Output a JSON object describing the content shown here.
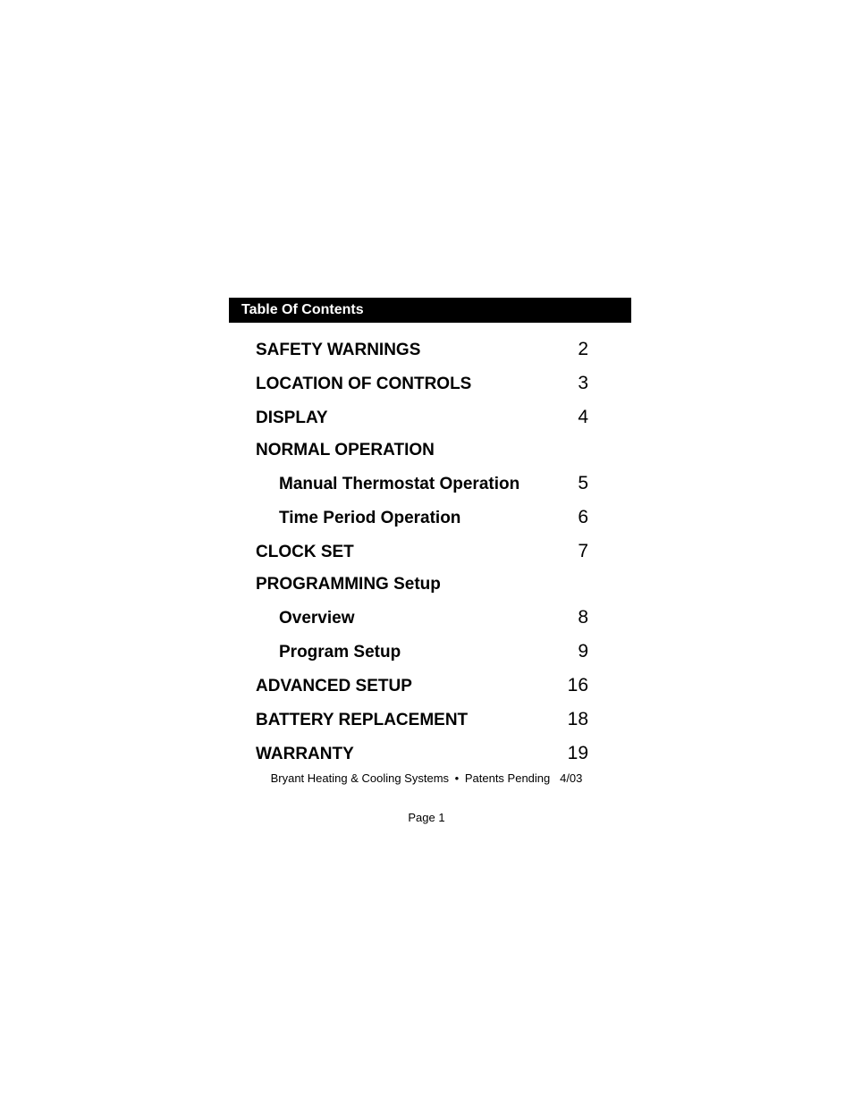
{
  "header": "Table Of Contents",
  "entries": [
    {
      "title": "SAFETY WARNINGS",
      "page": "2",
      "indent": false
    },
    {
      "title": "LOCATION OF CONTROLS",
      "page": "3",
      "indent": false
    },
    {
      "title": "DISPLAY",
      "page": "4",
      "indent": false
    },
    {
      "title": "NORMAL OPERATION",
      "page": "",
      "indent": false
    },
    {
      "title": "Manual Thermostat Operation",
      "page": "5",
      "indent": true
    },
    {
      "title": "Time Period Operation",
      "page": "6",
      "indent": true
    },
    {
      "title": "CLOCK SET",
      "page": "7",
      "indent": false
    },
    {
      "title": "PROGRAMMING Setup",
      "page": "",
      "indent": false
    },
    {
      "title": "Overview",
      "page": "8",
      "indent": true
    },
    {
      "title": "Program Setup",
      "page": "9",
      "indent": true
    },
    {
      "title": "ADVANCED SETUP",
      "page": "16",
      "indent": false
    },
    {
      "title": "BATTERY REPLACEMENT",
      "page": "18",
      "indent": false
    },
    {
      "title": "WARRANTY",
      "page": "19",
      "indent": false
    }
  ],
  "footer": {
    "company": "Bryant Heating & Cooling Systems",
    "patent": "Patents Pending",
    "date": "4/03"
  },
  "page_label": "Page 1",
  "colors": {
    "header_bg": "#000000",
    "header_text": "#ffffff",
    "body_text": "#000000",
    "page_bg": "#ffffff"
  },
  "typography": {
    "header_fontsize": 16,
    "title_fontsize": 19,
    "page_fontsize": 21,
    "footer_fontsize": 13
  }
}
